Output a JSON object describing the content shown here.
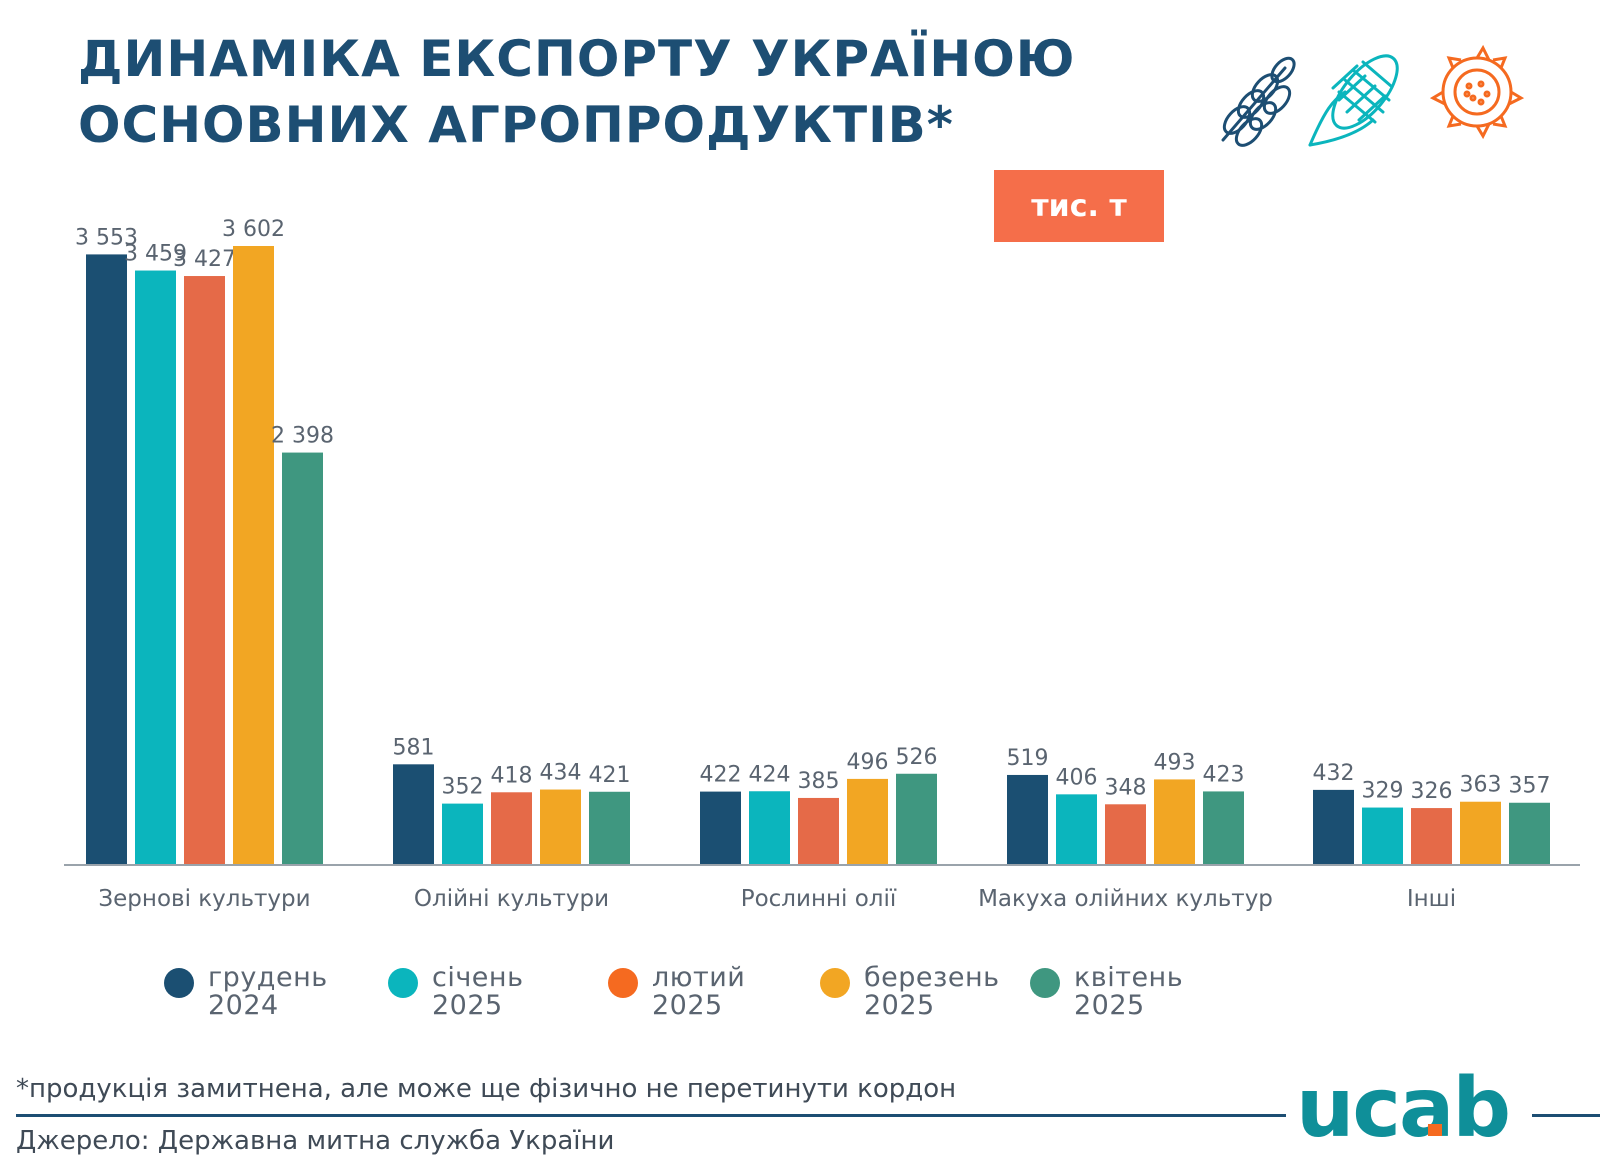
{
  "title": {
    "line1": "ДИНАМІКА ЕКСПОРТУ УКРАЇНОЮ",
    "line2": "ОСНОВНИХ АГРОПРОДУКТІВ*"
  },
  "unit_badge": "тис. т",
  "icons": [
    "wheat-icon",
    "corn-icon",
    "sunflower-icon"
  ],
  "colors": {
    "title": "#1d4e73",
    "badge": "#f56e4a",
    "axis": "#9aa3ab",
    "text": "#5a6470"
  },
  "chart_data": {
    "type": "bar",
    "categories": [
      "Зернові культури",
      "Олійні культури",
      "Рослинні олії",
      "Макуха олійних культур",
      "Інші"
    ],
    "series": [
      {
        "name": "грудень 2024",
        "color": "#1b4f72",
        "values": [
          3553,
          581,
          422,
          519,
          432
        ]
      },
      {
        "name": "січень 2025",
        "color": "#0bb5bd",
        "values": [
          3459,
          352,
          424,
          406,
          329
        ]
      },
      {
        "name": "лютий 2025",
        "color": "#e56a48",
        "values": [
          3427,
          418,
          385,
          348,
          326
        ]
      },
      {
        "name": "березень 2025",
        "color": "#f2a623",
        "values": [
          3602,
          434,
          496,
          493,
          363
        ]
      },
      {
        "name": "квітень 2025",
        "color": "#3f9780",
        "values": [
          2398,
          421,
          526,
          423,
          357
        ]
      }
    ],
    "data_labels": [
      [
        "3 553",
        "581",
        "422",
        "519",
        "432"
      ],
      [
        "3 459",
        "352",
        "424",
        "406",
        "329"
      ],
      [
        "3 427",
        "418",
        "385",
        "348",
        "326"
      ],
      [
        "3 602",
        "434",
        "496",
        "493",
        "363"
      ],
      [
        "2 398",
        "421",
        "526",
        "423",
        "357"
      ]
    ],
    "ylim": [
      0,
      3602
    ],
    "grid": false,
    "legend_position": "bottom"
  },
  "legend": [
    {
      "label": "грудень\n2024",
      "color": "#1b4f72"
    },
    {
      "label": "січень\n2025",
      "color": "#0bb5bd"
    },
    {
      "label": "лютий\n2025",
      "color": "#f56a20"
    },
    {
      "label": "березень\n2025",
      "color": "#f2a623"
    },
    {
      "label": "квітень\n2025",
      "color": "#3f9780"
    }
  ],
  "footnote": "*продукція замитнена, але може ще фізично не перетинути кордон",
  "source": "Джерело: Державна митна служба України",
  "logo_text": "ucab"
}
